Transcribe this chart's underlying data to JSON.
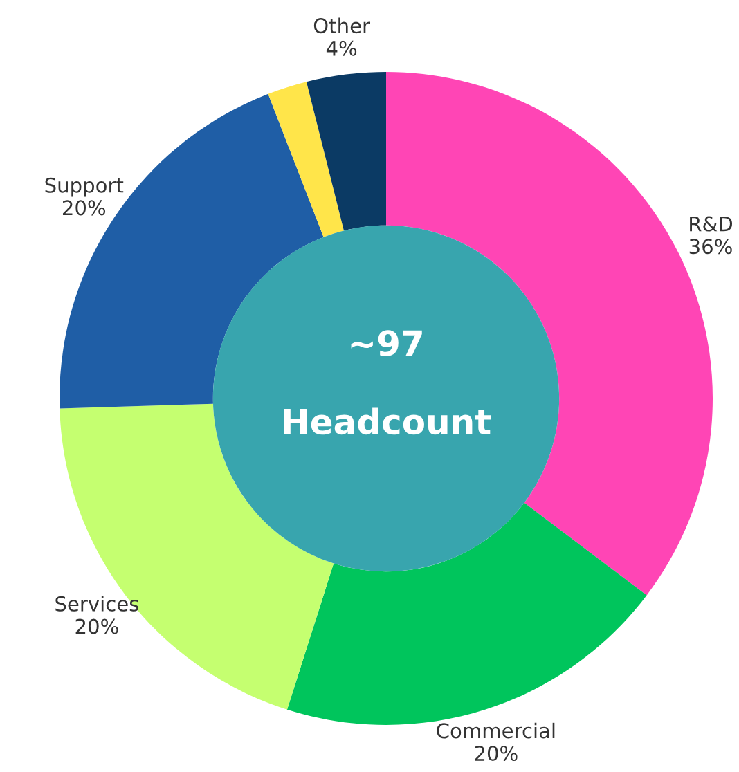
{
  "chart_data": {
    "type": "donut",
    "categories": [
      "R&D",
      "Commercial",
      "Services",
      "Support",
      null,
      "Other"
    ],
    "values": [
      36,
      20,
      20,
      20,
      2,
      4
    ],
    "value_labels": [
      "36%",
      "20%",
      "20%",
      "20%",
      null,
      "4%"
    ],
    "colors": [
      "#ff45b5",
      "#00c55c",
      "#c5ff70",
      "#1f5ea6",
      "#ffe54a",
      "#0b3a64"
    ],
    "annotations": [
      "~97",
      "Headcount"
    ],
    "legend": false
  }
}
